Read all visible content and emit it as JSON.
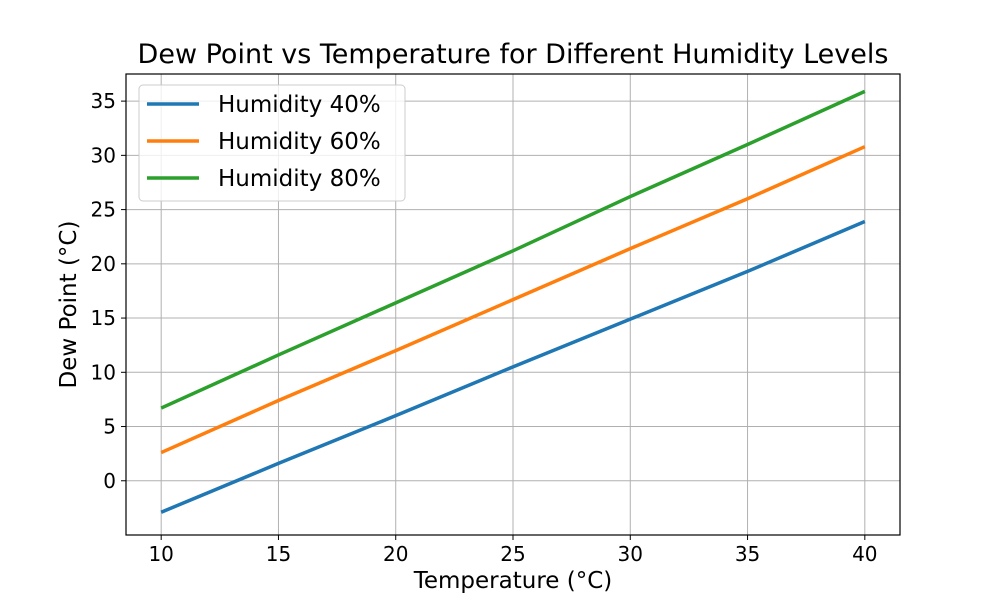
{
  "chart_data": {
    "type": "line",
    "title": "Dew Point vs Temperature for Different Humidity Levels",
    "xlabel": "Temperature (°C)",
    "ylabel": "Dew Point (°C)",
    "x": [
      10,
      15,
      20,
      25,
      30,
      35,
      40
    ],
    "series": [
      {
        "name": "Humidity 40%",
        "color": "#1f77b4",
        "values": [
          -2.9,
          1.6,
          6.0,
          10.5,
          14.9,
          19.3,
          23.9
        ]
      },
      {
        "name": "Humidity 60%",
        "color": "#ff7f0e",
        "values": [
          2.6,
          7.4,
          12.0,
          16.7,
          21.4,
          26.0,
          30.8
        ]
      },
      {
        "name": "Humidity 80%",
        "color": "#2ca02c",
        "values": [
          6.7,
          11.6,
          16.4,
          21.2,
          26.2,
          31.0,
          35.9
        ]
      }
    ],
    "xlim": [
      8.5,
      41.5
    ],
    "ylim": [
      -5.0,
      37.5
    ],
    "xticks": [
      10,
      15,
      20,
      25,
      30,
      35,
      40
    ],
    "yticks": [
      0,
      5,
      10,
      15,
      20,
      25,
      30,
      35
    ],
    "grid": true,
    "legend_position": "top-left"
  }
}
